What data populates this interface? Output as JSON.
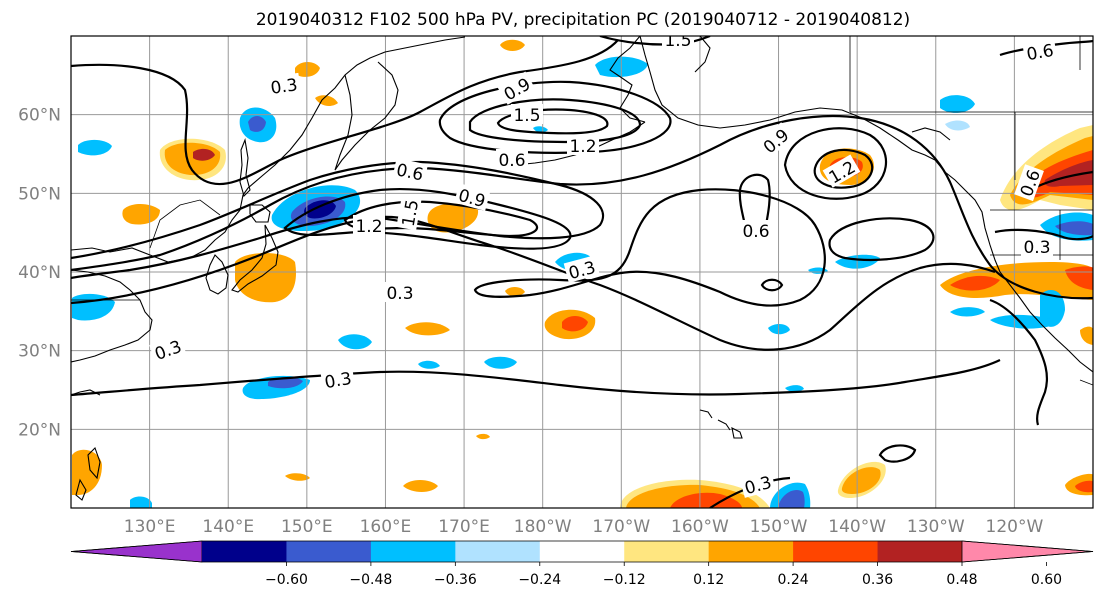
{
  "title": "2019040312 F102 500 hPa PV, precipitation PC (2019040712 - 2019040812)",
  "map": {
    "lat_labels": [
      "60°N",
      "50°N",
      "40°N",
      "30°N",
      "20°N"
    ],
    "lon_labels": [
      "130°E",
      "140°E",
      "150°E",
      "160°E",
      "170°E",
      "180°W",
      "170°W",
      "160°W",
      "150°W",
      "140°W",
      "130°W",
      "120°W"
    ],
    "gridlines": true,
    "projection": "PlateCarree"
  },
  "pv_contour_labels": [
    "0.3",
    "0.3",
    "0.3",
    "0.3",
    "0.3",
    "0.3",
    "0.3",
    "0.6",
    "0.6",
    "0.6",
    "0.6",
    "0.6",
    "0.9",
    "0.9",
    "0.9",
    "1.2",
    "1.2",
    "1.2",
    "1.5",
    "1.5",
    "1.5"
  ],
  "colorbar": {
    "tick_labels": [
      "−0.60",
      "−0.48",
      "−0.36",
      "−0.24",
      "−0.12",
      "0.12",
      "0.24",
      "0.36",
      "0.48",
      "0.60"
    ],
    "colors": [
      "#9932cc",
      "#00008b",
      "#3a5bcf",
      "#00bfff",
      "#b0e2ff",
      "#ffffff",
      "#ffe680",
      "#ffa500",
      "#ff4500",
      "#b22222",
      "#ff88aa"
    ]
  },
  "chart_data": {
    "type": "heatmap",
    "title": "2019040312 F102 500 hPa PV, precipitation PC (2019040712 - 2019040812)",
    "xlim": [
      120,
      250
    ],
    "ylim": [
      10,
      70
    ],
    "x_tick_labels": [
      "130°E",
      "140°E",
      "150°E",
      "160°E",
      "170°E",
      "180°W",
      "170°W",
      "160°W",
      "150°W",
      "140°W",
      "130°W",
      "120°W"
    ],
    "y_tick_labels": [
      "60°N",
      "50°N",
      "40°N",
      "30°N",
      "20°N"
    ],
    "contour_levels": [
      0.3,
      0.6,
      0.9,
      1.2,
      1.5
    ],
    "colorbar_levels": [
      -0.6,
      -0.48,
      -0.36,
      -0.24,
      -0.12,
      0.12,
      0.24,
      0.36,
      0.48,
      0.6
    ],
    "colorbar_extend": "both"
  }
}
